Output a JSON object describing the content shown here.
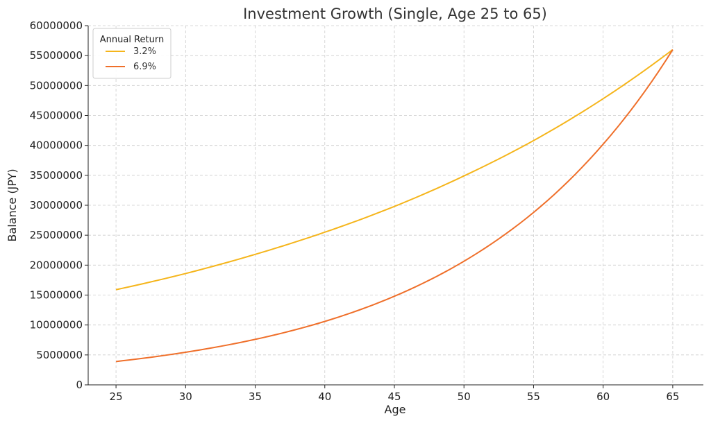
{
  "chart_data": {
    "type": "line",
    "title": "Investment Growth (Single, Age 25 to 65)",
    "xlabel": "Age",
    "ylabel": "Balance (JPY)",
    "xlim": [
      23,
      67.2
    ],
    "ylim": [
      0,
      60000000
    ],
    "xticks": [
      25,
      30,
      35,
      40,
      45,
      50,
      55,
      60,
      65
    ],
    "xtick_labels": [
      "25",
      "30",
      "35",
      "40",
      "45",
      "50",
      "55",
      "60",
      "65"
    ],
    "yticks": [
      0,
      5000000,
      10000000,
      15000000,
      20000000,
      25000000,
      30000000,
      35000000,
      40000000,
      45000000,
      50000000,
      55000000,
      60000000
    ],
    "ytick_labels": [
      "0",
      "5000000",
      "10000000",
      "15000000",
      "20000000",
      "25000000",
      "30000000",
      "35000000",
      "40000000",
      "45000000",
      "50000000",
      "55000000",
      "60000000"
    ],
    "grid": true,
    "legend": {
      "title": "Annual Return",
      "placement": "top-left"
    },
    "x": [
      25,
      30,
      35,
      40,
      45,
      50,
      55,
      60,
      65
    ],
    "series": [
      {
        "name": "3.2%",
        "color": "#f5b51b",
        "values": [
          15900000,
          18600000,
          21800000,
          25500000,
          29800000,
          34900000,
          40800000,
          47800000,
          56000000
        ]
      },
      {
        "name": "6.9%",
        "color": "#ef6f2a",
        "values": [
          3900000,
          5450000,
          7600000,
          10600000,
          14800000,
          20650000,
          28800000,
          40200000,
          56000000
        ]
      }
    ]
  }
}
